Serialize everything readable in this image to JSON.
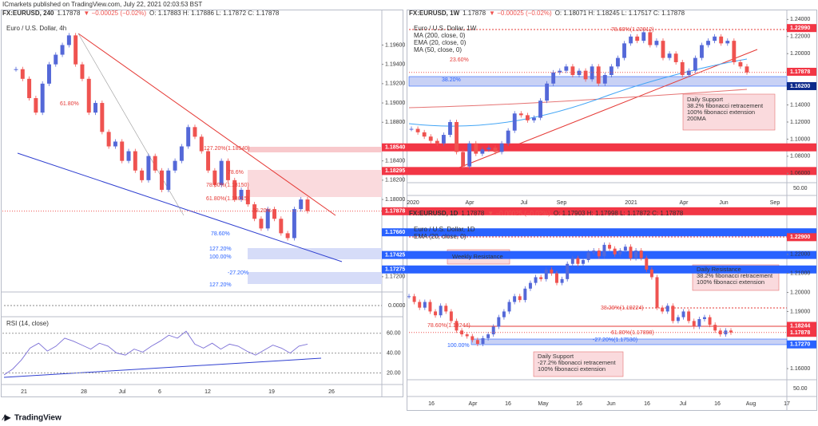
{
  "page": {
    "header": "ICmarkets published on TradingView.com, July 22, 2021 02:03:53 BST",
    "logo": "TradingView"
  },
  "chart_data": [
    {
      "type": "candlestick",
      "symbol": "FX:EURUSD, 240",
      "last": "1.17878",
      "change": "▼ −0.00025 (−0.02%)",
      "ohlc": "O: 1.17883  H: 1.17886  L: 1.17872  C: 1.17878",
      "legend": [
        "Euro / U.S. Dollar, 4h"
      ],
      "colors": {
        "up": "#5468d8",
        "down": "#ef5350"
      },
      "ylim": [
        1.1705,
        1.1986
      ],
      "yticks": [
        {
          "value": 1.196,
          "label": "1.19600"
        },
        {
          "value": 1.194,
          "label": "1.19400"
        },
        {
          "value": 1.192,
          "label": "1.19200"
        },
        {
          "value": 1.19,
          "label": "1.19000"
        },
        {
          "value": 1.188,
          "label": "1.18800"
        },
        {
          "value": 1.184,
          "label": "1.18400"
        },
        {
          "value": 1.182,
          "label": "1.18200"
        },
        {
          "value": 1.18,
          "label": "1.18000"
        },
        {
          "value": 1.172,
          "label": "1.17200"
        }
      ],
      "values": [
        1.1935,
        1.1925,
        1.1905,
        1.189,
        1.192,
        1.194,
        1.195,
        1.196,
        1.197,
        1.194,
        1.1925,
        1.189,
        1.19,
        1.187,
        1.1855,
        1.186,
        1.184,
        1.185,
        1.183,
        1.182,
        1.1845,
        1.183,
        1.181,
        1.183,
        1.184,
        1.1855,
        1.1875,
        1.1865,
        1.185,
        1.183,
        1.1815,
        1.184,
        1.182,
        1.18,
        1.181,
        1.1795,
        1.178,
        1.177,
        1.179,
        1.178,
        1.1765,
        1.176,
        1.179,
        1.18,
        1.1788
      ],
      "price_tags": [
        {
          "value": 1.1854,
          "label": "1.18540",
          "color": "#f23645"
        },
        {
          "value": 1.18295,
          "label": "1.18295",
          "color": "#f23645"
        },
        {
          "value": 1.17878,
          "label": "1.17878",
          "color": "#f23645"
        },
        {
          "value": 1.1766,
          "label": "1.17660",
          "color": "#2962ff"
        },
        {
          "value": 1.17425,
          "label": "1.17425",
          "color": "#2962ff"
        },
        {
          "value": 1.17275,
          "label": "1.17275",
          "color": "#2962ff"
        }
      ],
      "fib_labels": [
        "61.80%",
        "127.20%(1.18540)",
        "78.6%",
        "78.60%(1.18150)",
        "61.80%(1.18015)",
        "38.20%",
        "78.60%",
        "127.20%",
        "100.00%",
        "-27.20%",
        "127.20%"
      ],
      "xtick_labels": [
        "21",
        "28",
        "Jul",
        "6",
        "12",
        "19",
        "26"
      ],
      "sub_label": "0.0000",
      "rsi": {
        "title": "RSI (14, close)",
        "ylim": [
          10,
          75
        ],
        "yticks": [
          {
            "value": 60,
            "label": "60.00"
          },
          {
            "value": 40,
            "label": "40.00"
          },
          {
            "value": 20,
            "label": "20.00"
          }
        ],
        "color": "#7b6fd6",
        "values": [
          18,
          24,
          33,
          45,
          50,
          42,
          47,
          55,
          52,
          48,
          44,
          50,
          47,
          40,
          38,
          44,
          41,
          47,
          52,
          58,
          55,
          62,
          49,
          45,
          50,
          44,
          49,
          47,
          42,
          38,
          43,
          48,
          45,
          40,
          47,
          49
        ]
      }
    },
    {
      "type": "candlestick",
      "symbol": "FX:EURUSD, 1W",
      "last": "1.17878",
      "change": "▼ −0.00025 (−0.02%)",
      "ohlc": "O: 1.18071  H: 1.18245  L: 1.17517  C: 1.17878",
      "legend": [
        "Euro / U.S. Dollar, 1W",
        "MA (200, close, 0)",
        "EMA (20, close, 0)",
        "MA (50, close, 0)"
      ],
      "colors": {
        "up": "#5468d8",
        "down": "#ef5350"
      },
      "ylim": [
        1.05,
        1.245
      ],
      "yticks": [
        {
          "value": 1.24,
          "label": "1.24000"
        },
        {
          "value": 1.22,
          "label": "1.22000"
        },
        {
          "value": 1.2,
          "label": "1.20000"
        },
        {
          "value": 1.18,
          "label": "1.18000"
        },
        {
          "value": 1.14,
          "label": "1.14000"
        },
        {
          "value": 1.12,
          "label": "1.12000"
        },
        {
          "value": 1.1,
          "label": "1.10000"
        },
        {
          "value": 1.08,
          "label": "1.08000"
        },
        {
          "value": 1.06,
          "label": "1.06000"
        }
      ],
      "values": [
        1.112,
        1.108,
        1.103,
        1.098,
        1.095,
        1.105,
        1.12,
        1.085,
        1.068,
        1.095,
        1.083,
        1.088,
        1.09,
        1.085,
        1.095,
        1.11,
        1.13,
        1.128,
        1.122,
        1.125,
        1.145,
        1.165,
        1.178,
        1.18,
        1.185,
        1.175,
        1.18,
        1.17,
        1.185,
        1.165,
        1.175,
        1.185,
        1.195,
        1.212,
        1.22,
        1.215,
        1.225,
        1.21,
        1.215,
        1.195,
        1.2,
        1.19,
        1.175,
        1.18,
        1.195,
        1.21,
        1.215,
        1.22,
        1.212,
        1.215,
        1.19,
        1.185,
        1.178
      ],
      "price_tags": [
        {
          "value": 1.2299,
          "label": "1.22990",
          "color": "#f23645"
        },
        {
          "value": 1.17878,
          "label": "1.17878",
          "color": "#f23645"
        },
        {
          "value": 1.162,
          "label": "1.16200",
          "color": "#0d2a8a"
        }
      ],
      "fib_labels": [
        "78.60%(1.22912)",
        "23.60%",
        "38.20%"
      ],
      "notes": [
        [
          "Daily Support",
          "38.2% fibonacci retracement",
          "100% fibonacci extension",
          "200MA"
        ]
      ],
      "xtick_labels": [
        "2020",
        "Apr",
        "Jul",
        "Sep",
        "2021",
        "Apr",
        "Jun",
        "Sep"
      ],
      "sub_label": "50.00"
    },
    {
      "type": "candlestick",
      "symbol": "FX:EURUSD, 1D",
      "last": "1.17878",
      "change": "▼ −0.00025 (−0.02%)",
      "ohlc": "O: 1.17903  H: 1.17998  L: 1.17872  C: 1.17878",
      "legend": [
        "Euro / U.S. Dollar, 1D",
        "EMA (20, close, 0)"
      ],
      "colors": {
        "up": "#5468d8",
        "down": "#ef5350"
      },
      "ylim": [
        1.155,
        1.235
      ],
      "yticks": [
        {
          "value": 1.22,
          "label": "1.22000"
        },
        {
          "value": 1.21,
          "label": "1.21000"
        },
        {
          "value": 1.2,
          "label": "1.20000"
        },
        {
          "value": 1.19,
          "label": "1.19000"
        },
        {
          "value": 1.16,
          "label": "1.16000"
        }
      ],
      "values": [
        1.198,
        1.195,
        1.192,
        1.195,
        1.19,
        1.188,
        1.193,
        1.19,
        1.185,
        1.18,
        1.178,
        1.177,
        1.175,
        1.173,
        1.176,
        1.178,
        1.182,
        1.187,
        1.19,
        1.195,
        1.198,
        1.196,
        1.202,
        1.205,
        1.208,
        1.207,
        1.212,
        1.21,
        1.205,
        1.207,
        1.215,
        1.218,
        1.215,
        1.217,
        1.221,
        1.222,
        1.219,
        1.225,
        1.223,
        1.22,
        1.222,
        1.224,
        1.218,
        1.222,
        1.218,
        1.212,
        1.208,
        1.192,
        1.19,
        1.193,
        1.185,
        1.187,
        1.19,
        1.185,
        1.182,
        1.186,
        1.187,
        1.183,
        1.18,
        1.178,
        1.18,
        1.179
      ],
      "price_tags": [
        {
          "value": 1.229,
          "label": "1.22900",
          "color": "#f23645"
        },
        {
          "value": 1.18244,
          "label": "1.18244",
          "color": "#f23645"
        },
        {
          "value": 1.17878,
          "label": "1.17878",
          "color": "#f23645"
        },
        {
          "value": 1.1727,
          "label": "1.17270",
          "color": "#2962ff"
        }
      ],
      "fib_labels": [
        "38.20%(1.19224)",
        "78.60%(1.18244)",
        "61.80%(1.17898)",
        "-27.20%(1.17530)",
        "100.00%"
      ],
      "notes": [
        [
          "Weekly Resistance"
        ],
        [
          "Daily Resistance",
          "38.2% fibonacci retracement",
          "100% fibonacci extension"
        ],
        [
          "Daily Support",
          "-27.2% fibonacci retracement",
          "100% fibonacci extension"
        ]
      ],
      "xtick_labels": [
        "16",
        "Apr",
        "16",
        "May",
        "16",
        "Jun",
        "16",
        "Jul",
        "16",
        "Aug",
        "17"
      ],
      "sub_label": "50.00"
    }
  ]
}
